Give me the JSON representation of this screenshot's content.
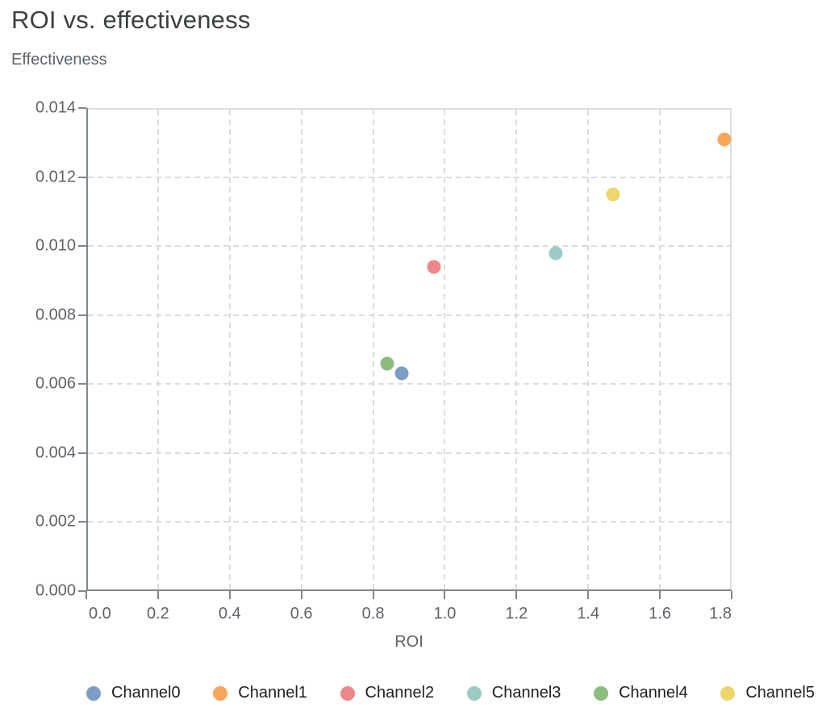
{
  "colors": {
    "background": "#ffffff",
    "title": "#3c4043",
    "axis-text": "#5f6368",
    "legend-text": "#202124",
    "axis-line": "#80868b",
    "grid": "#dadce0"
  },
  "chart_data": {
    "type": "scatter",
    "title": "ROI vs. effectiveness",
    "xlabel": "ROI",
    "ylabel": "Effectiveness",
    "xlim": [
      0,
      1.8
    ],
    "ylim": [
      0,
      0.014
    ],
    "x_ticks": [
      "0.0",
      "0.2",
      "0.4",
      "0.6",
      "0.8",
      "1.0",
      "1.2",
      "1.4",
      "1.6",
      "1.8"
    ],
    "y_ticks": [
      "0.000",
      "0.002",
      "0.004",
      "0.006",
      "0.008",
      "0.010",
      "0.012",
      "0.014"
    ],
    "grid": "dashed",
    "legend_position": "bottom",
    "series": [
      {
        "name": "Channel0",
        "color": "#7d9cc6",
        "x": 0.88,
        "y": 0.0063
      },
      {
        "name": "Channel1",
        "color": "#f7a75e",
        "x": 1.78,
        "y": 0.0131
      },
      {
        "name": "Channel2",
        "color": "#ee878b",
        "x": 0.97,
        "y": 0.0094
      },
      {
        "name": "Channel3",
        "color": "#9ccbc5",
        "x": 1.31,
        "y": 0.0098
      },
      {
        "name": "Channel4",
        "color": "#8bbd7e",
        "x": 0.84,
        "y": 0.0066
      },
      {
        "name": "Channel5",
        "color": "#f0d46c",
        "x": 1.47,
        "y": 0.0115
      }
    ]
  }
}
